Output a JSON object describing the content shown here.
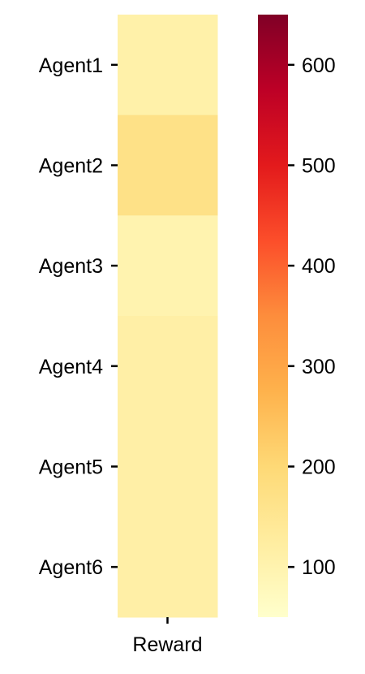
{
  "chart_data": {
    "type": "heatmap",
    "x_categories": [
      "Reward"
    ],
    "y_categories": [
      "Agent1",
      "Agent2",
      "Agent3",
      "Agent4",
      "Agent5",
      "Agent6"
    ],
    "values": [
      [
        110
      ],
      [
        170
      ],
      [
        100
      ],
      [
        115
      ],
      [
        115
      ],
      [
        115
      ]
    ],
    "colorbar": {
      "range": [
        50,
        650
      ],
      "ticks": [
        100,
        200,
        300,
        400,
        500,
        600
      ],
      "colormap": "YlOrRd"
    },
    "title": "",
    "xlabel": "",
    "ylabel": ""
  }
}
